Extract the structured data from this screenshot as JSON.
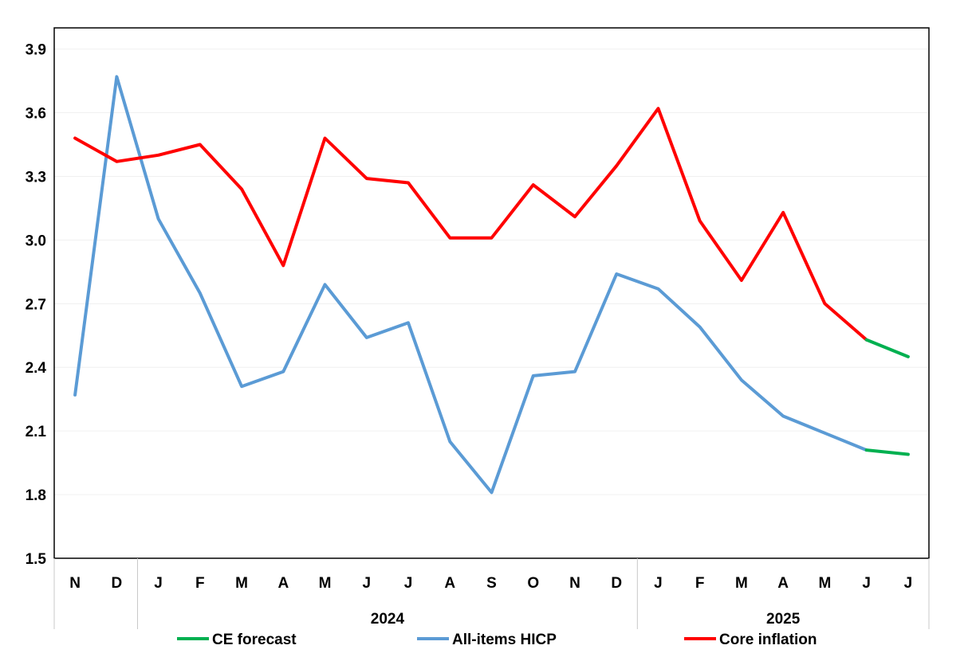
{
  "chart_data": {
    "type": "line",
    "title": "",
    "xlabel": "",
    "ylabel": "",
    "ylim": [
      1.5,
      4.0
    ],
    "yticks": [
      "1.5",
      "1.8",
      "2.1",
      "2.4",
      "2.7",
      "3.0",
      "3.3",
      "3.6",
      "3.9"
    ],
    "categories": [
      "N",
      "D",
      "J",
      "F",
      "M",
      "A",
      "M",
      "J",
      "J",
      "A",
      "S",
      "O",
      "N",
      "D",
      "J",
      "F",
      "M",
      "A",
      "M",
      "J",
      "J"
    ],
    "year_groups": [
      {
        "label": "",
        "start": 0,
        "end": 1
      },
      {
        "label": "2024",
        "start": 2,
        "end": 13
      },
      {
        "label": "2025",
        "start": 14,
        "end": 20
      }
    ],
    "grid": true,
    "legend_position": "bottom",
    "series": [
      {
        "name": "All-items HICP",
        "color": "#5B9BD5",
        "values": [
          2.27,
          3.77,
          3.1,
          2.75,
          2.31,
          2.38,
          2.79,
          2.54,
          2.61,
          2.05,
          1.81,
          2.36,
          2.38,
          2.84,
          2.77,
          2.59,
          2.34,
          2.17,
          2.09,
          2.01,
          null
        ]
      },
      {
        "name": "Core inflation",
        "color": "#FF0000",
        "values": [
          3.48,
          3.37,
          3.4,
          3.45,
          3.24,
          2.88,
          3.48,
          3.29,
          3.27,
          3.01,
          3.01,
          3.26,
          3.11,
          3.35,
          3.62,
          3.09,
          2.81,
          3.13,
          2.7,
          2.53,
          null
        ]
      },
      {
        "name": "CE forecast",
        "color": "#00B050",
        "segments": [
          {
            "x": [
              19,
              20
            ],
            "values": [
              2.01,
              1.99
            ]
          },
          {
            "x": [
              19,
              20
            ],
            "values": [
              2.53,
              2.45
            ]
          }
        ]
      }
    ]
  }
}
